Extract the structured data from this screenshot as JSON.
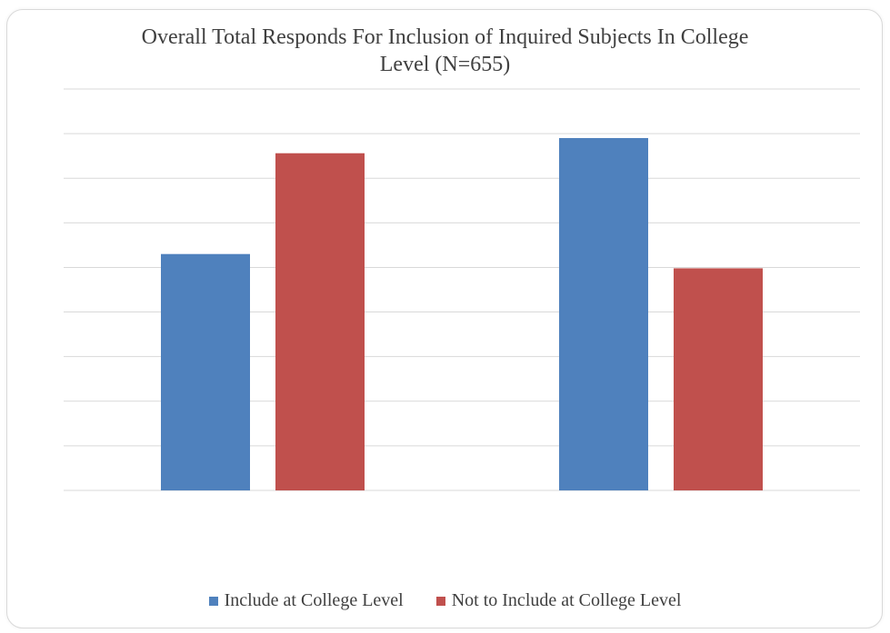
{
  "chart_data": {
    "type": "bar",
    "title_line1": "Overall Total Responds For Inclusion of Inquired Subjects In College",
    "title_line2": "Level (N=655)",
    "categories": [
      "",
      ""
    ],
    "series": [
      {
        "name": "Include at College Level",
        "color": "#4f81bd",
        "values": [
          265,
          395
        ]
      },
      {
        "name": "Not to Include at College Level",
        "color": "#c0504d",
        "values": [
          378,
          249
        ]
      }
    ],
    "ylim": [
      0,
      450
    ],
    "gridlines": [
      0,
      50,
      100,
      150,
      200,
      250,
      300,
      350,
      400,
      450
    ],
    "grid": true,
    "legend_position": "bottom"
  }
}
